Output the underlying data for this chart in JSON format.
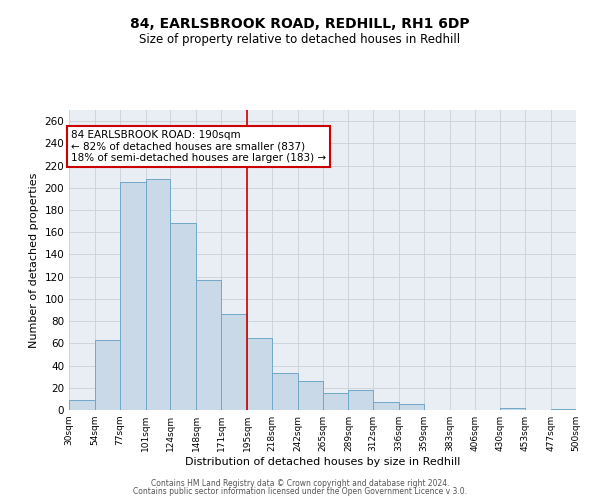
{
  "title": "84, EARLSBROOK ROAD, REDHILL, RH1 6DP",
  "subtitle": "Size of property relative to detached houses in Redhill",
  "xlabel": "Distribution of detached houses by size in Redhill",
  "ylabel": "Number of detached properties",
  "bin_edges": [
    30,
    54,
    77,
    101,
    124,
    148,
    171,
    195,
    218,
    242,
    265,
    289,
    312,
    336,
    359,
    383,
    406,
    430,
    453,
    477,
    500
  ],
  "counts": [
    9,
    63,
    205,
    208,
    168,
    117,
    86,
    65,
    33,
    26,
    15,
    18,
    7,
    5,
    0,
    0,
    0,
    2,
    0,
    1
  ],
  "bar_facecolor": "#c9d9e8",
  "bar_edgecolor": "#6fa8c8",
  "grid_color": "#c8d0d8",
  "bg_color": "#e8eef4",
  "vline_x": 195,
  "vline_color": "#cc0000",
  "annotation_line1": "84 EARLSBROOK ROAD: 190sqm",
  "annotation_line2": "← 82% of detached houses are smaller (837)",
  "annotation_line3": "18% of semi-detached houses are larger (183) →",
  "annotation_box_edgecolor": "#cc0000",
  "ylim": [
    0,
    270
  ],
  "yticks": [
    0,
    20,
    40,
    60,
    80,
    100,
    120,
    140,
    160,
    180,
    200,
    220,
    240,
    260
  ],
  "tick_labels": [
    "30sqm",
    "54sqm",
    "77sqm",
    "101sqm",
    "124sqm",
    "148sqm",
    "171sqm",
    "195sqm",
    "218sqm",
    "242sqm",
    "265sqm",
    "289sqm",
    "312sqm",
    "336sqm",
    "359sqm",
    "383sqm",
    "406sqm",
    "430sqm",
    "453sqm",
    "477sqm",
    "500sqm"
  ],
  "footer1": "Contains HM Land Registry data © Crown copyright and database right 2024.",
  "footer2": "Contains public sector information licensed under the Open Government Licence v 3.0.",
  "title_fontsize": 10,
  "subtitle_fontsize": 8.5,
  "xlabel_fontsize": 8,
  "ylabel_fontsize": 8,
  "xtick_fontsize": 6.5,
  "ytick_fontsize": 7.5,
  "footer_fontsize": 5.5,
  "annot_fontsize": 7.5
}
